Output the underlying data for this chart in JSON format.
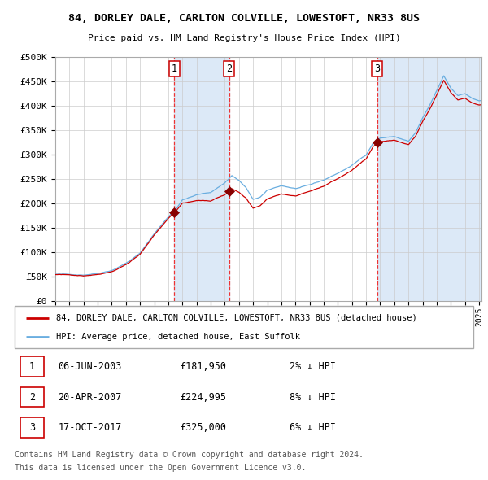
{
  "title1": "84, DORLEY DALE, CARLTON COLVILLE, LOWESTOFT, NR33 8US",
  "title2": "Price paid vs. HM Land Registry's House Price Index (HPI)",
  "legend_line1": "84, DORLEY DALE, CARLTON COLVILLE, LOWESTOFT, NR33 8US (detached house)",
  "legend_line2": "HPI: Average price, detached house, East Suffolk",
  "transactions": [
    {
      "num": 1,
      "date": "06-JUN-2003",
      "price": 181950,
      "pct": "2%",
      "dir": "↓"
    },
    {
      "num": 2,
      "date": "20-APR-2007",
      "price": 224995,
      "pct": "8%",
      "dir": "↓"
    },
    {
      "num": 3,
      "date": "17-OCT-2017",
      "price": 325000,
      "pct": "6%",
      "dir": "↓"
    }
  ],
  "transaction_dates_decimal": [
    2003.43,
    2007.3,
    2017.79
  ],
  "transaction_prices": [
    181950,
    224995,
    325000
  ],
  "ylabel_ticks": [
    "£0",
    "£50K",
    "£100K",
    "£150K",
    "£200K",
    "£250K",
    "£300K",
    "£350K",
    "£400K",
    "£450K",
    "£500K"
  ],
  "ytick_values": [
    0,
    50000,
    100000,
    150000,
    200000,
    250000,
    300000,
    350000,
    400000,
    450000,
    500000
  ],
  "hpi_color": "#6aaee0",
  "price_color": "#cc0000",
  "bg_shade_color": "#dce9f7",
  "grid_color": "#cccccc",
  "dashed_line_color": "#ee3333",
  "marker_color": "#880000",
  "footnote1": "Contains HM Land Registry data © Crown copyright and database right 2024.",
  "footnote2": "This data is licensed under the Open Government Licence v3.0.",
  "hpi_anchors_t": [
    1995.0,
    1996.0,
    1997.0,
    1998.0,
    1999.0,
    2000.0,
    2001.0,
    2002.0,
    2003.0,
    2003.5,
    2004.0,
    2005.0,
    2006.0,
    2007.0,
    2007.5,
    2008.0,
    2008.5,
    2009.0,
    2009.5,
    2010.0,
    2011.0,
    2012.0,
    2013.0,
    2014.0,
    2015.0,
    2016.0,
    2017.0,
    2017.5,
    2018.0,
    2019.0,
    2020.0,
    2020.5,
    2021.0,
    2021.5,
    2022.0,
    2022.5,
    2023.0,
    2023.5,
    2024.0,
    2024.5,
    2025.0
  ],
  "hpi_anchors_v": [
    55000,
    54000,
    54000,
    58000,
    65000,
    80000,
    100000,
    140000,
    175000,
    190000,
    210000,
    220000,
    225000,
    245000,
    260000,
    250000,
    235000,
    210000,
    215000,
    228000,
    238000,
    232000,
    238000,
    248000,
    262000,
    278000,
    300000,
    325000,
    335000,
    338000,
    328000,
    345000,
    375000,
    400000,
    430000,
    460000,
    435000,
    420000,
    425000,
    415000,
    410000
  ]
}
